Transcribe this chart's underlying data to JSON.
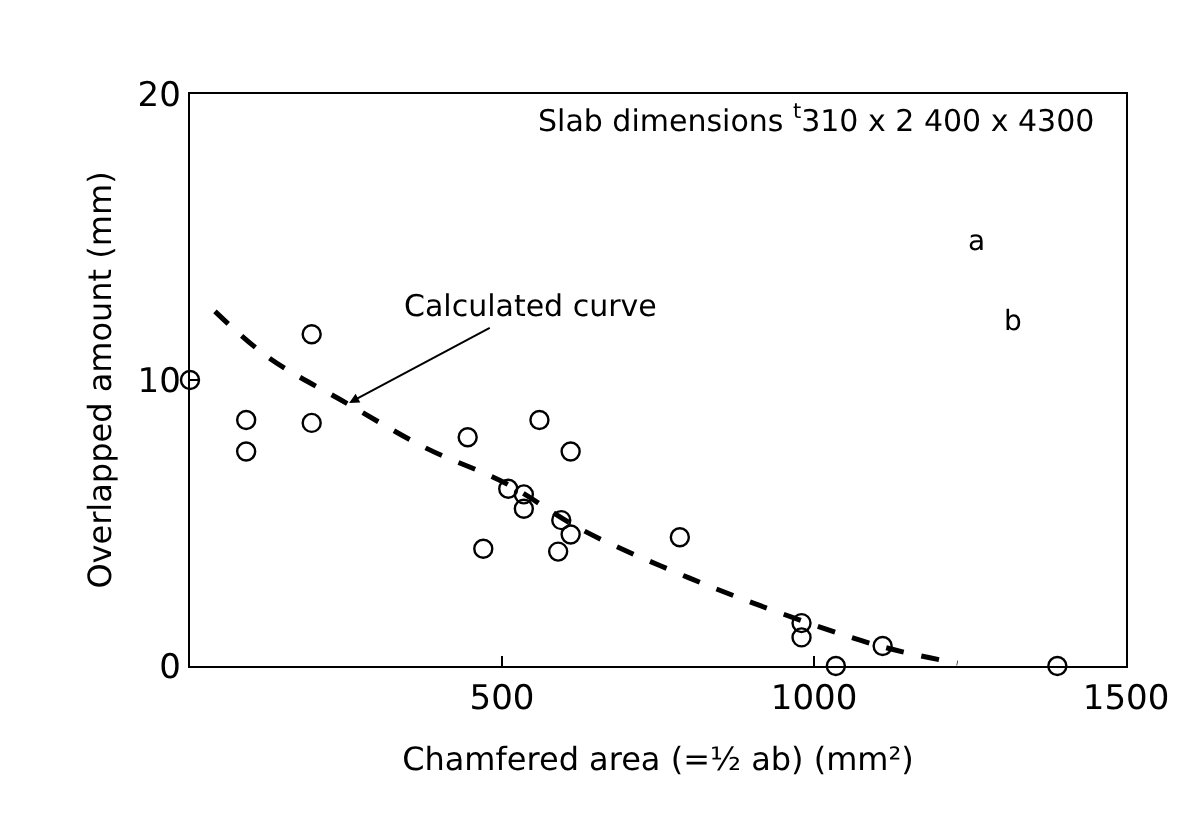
{
  "chart_data": {
    "type": "scatter",
    "xlabel": "Chamfered area (=½ ab) (mm²)",
    "ylabel": "Overlapped amount (mm)",
    "annotations": [
      "Slab dimensions $^{t}$310 x 2 400 x 4300",
      {
        "text": "Calculated curve",
        "x": 255,
        "y": 9.2
      },
      "a",
      "b"
    ],
    "xlim": [
      0,
      1500
    ],
    "ylim": [
      0,
      20
    ],
    "xticks": [
      500,
      1000,
      1500
    ],
    "yticks": [
      0,
      10,
      20
    ],
    "series": [
      {
        "color": "#000000",
        "marker": "circle",
        "x": [
          0,
          90,
          90,
          195,
          195,
          445,
          560,
          610,
          510,
          535,
          535,
          595,
          610,
          470,
          590,
          785,
          980,
          980,
          1110,
          1035,
          1390
        ],
        "values": [
          10.0,
          8.6,
          7.5,
          11.6,
          8.5,
          8.0,
          8.6,
          7.5,
          6.2,
          6.0,
          5.5,
          5.1,
          4.6,
          4.1,
          4.0,
          4.5,
          1.5,
          1.0,
          0.7,
          0.0,
          0.0
        ]
      },
      {
        "type": "line",
        "color": "#000000",
        "marker": "none",
        "line_style": "dashed",
        "x": [
          40,
          125,
          250,
          380,
          505,
          625,
          765,
          915,
          1105,
          1230
        ],
        "values": [
          12.4,
          10.8,
          9.2,
          7.6,
          6.4,
          4.8,
          3.4,
          2.1,
          0.7,
          0.1
        ]
      }
    ]
  }
}
